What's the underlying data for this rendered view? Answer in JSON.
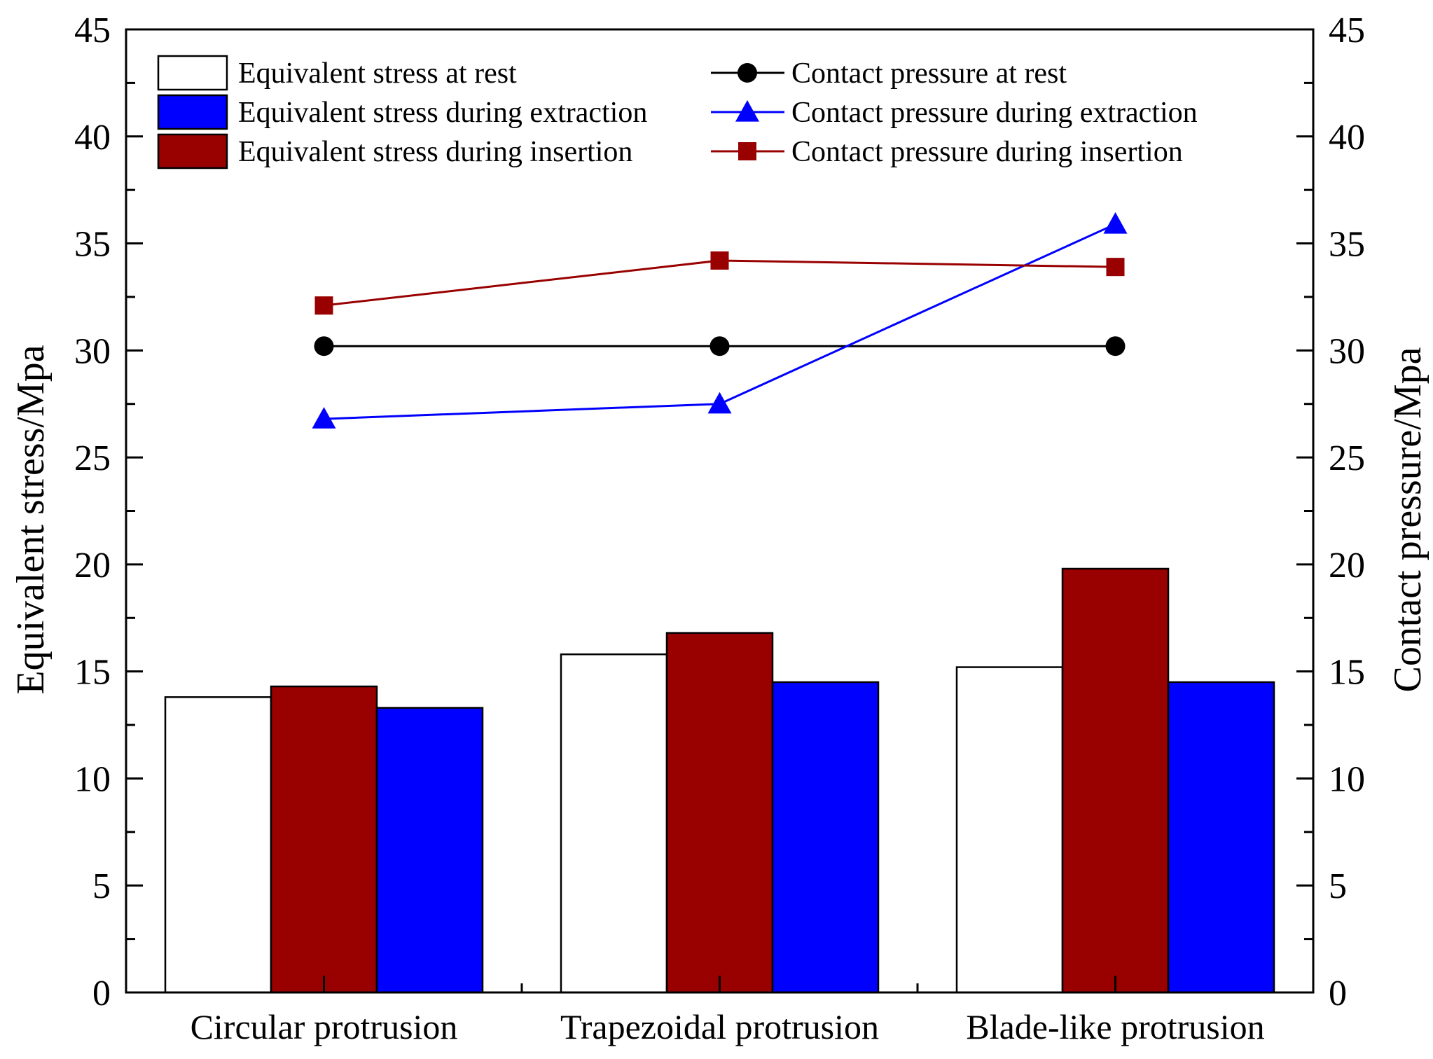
{
  "chart_data": {
    "type": "bar",
    "categories": [
      "Circular protrusion",
      "Trapezoidal protrusion",
      "Blade-like protrusion"
    ],
    "ylabel": "Equivalent stress/Mpa",
    "ylabel_right": "Contact pressure/Mpa",
    "ylim": [
      0,
      45
    ],
    "ylim_right": [
      0,
      45
    ],
    "yticks": [
      0,
      5,
      10,
      15,
      20,
      25,
      30,
      35,
      40,
      45
    ],
    "bar_series": [
      {
        "name": "Equivalent stress at rest",
        "color": "#ffffff",
        "values": [
          13.8,
          15.8,
          15.2
        ]
      },
      {
        "name": "Equivalent stress during insertion",
        "color": "#990000",
        "values": [
          14.3,
          16.8,
          19.8
        ]
      },
      {
        "name": "Equivalent stress during extraction",
        "color": "#0000ff",
        "values": [
          13.3,
          14.5,
          14.5
        ]
      }
    ],
    "line_series": [
      {
        "name": "Contact pressure at rest",
        "color": "#000000",
        "marker": "circle",
        "values": [
          30.2,
          30.2,
          30.2
        ]
      },
      {
        "name": "Contact pressure during extraction",
        "color": "#0000ff",
        "marker": "triangle",
        "values": [
          26.8,
          27.5,
          35.9
        ]
      },
      {
        "name": "Contact pressure during insertion",
        "color": "#990000",
        "marker": "square",
        "values": [
          32.1,
          34.2,
          33.9
        ]
      }
    ],
    "legend": {
      "placement": "top",
      "left_column": [
        "Equivalent stress at rest",
        "Equivalent stress during extraction",
        "Equivalent stress during insertion"
      ],
      "right_column": [
        "Contact pressure at rest",
        "Contact pressure during extraction",
        "Contact pressure during insertion"
      ]
    }
  }
}
